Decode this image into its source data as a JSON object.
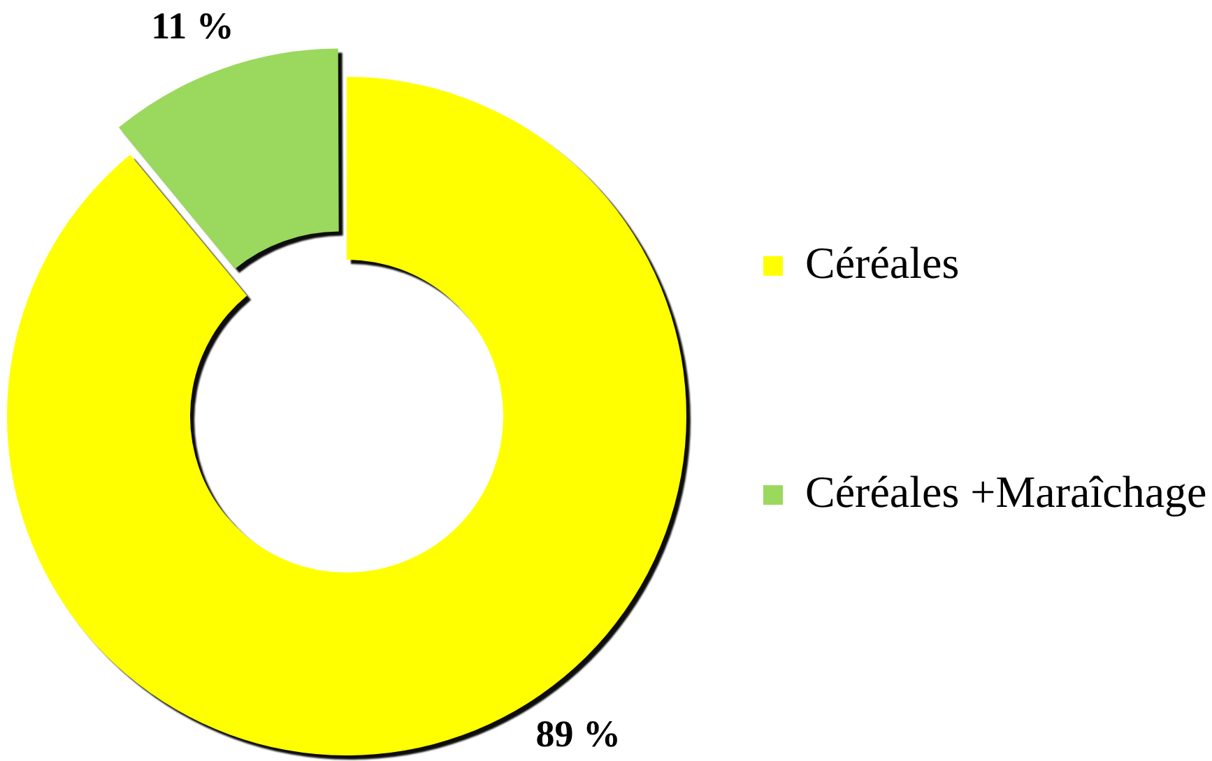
{
  "chart_data": {
    "type": "donut",
    "categories": [
      "Céréales",
      "Céréales +Maraîchage"
    ],
    "values": [
      89,
      11
    ],
    "colors": [
      "#ffff00",
      "#9ad85e"
    ],
    "value_labels": [
      "89 %",
      "11 %"
    ],
    "legend": "right"
  }
}
